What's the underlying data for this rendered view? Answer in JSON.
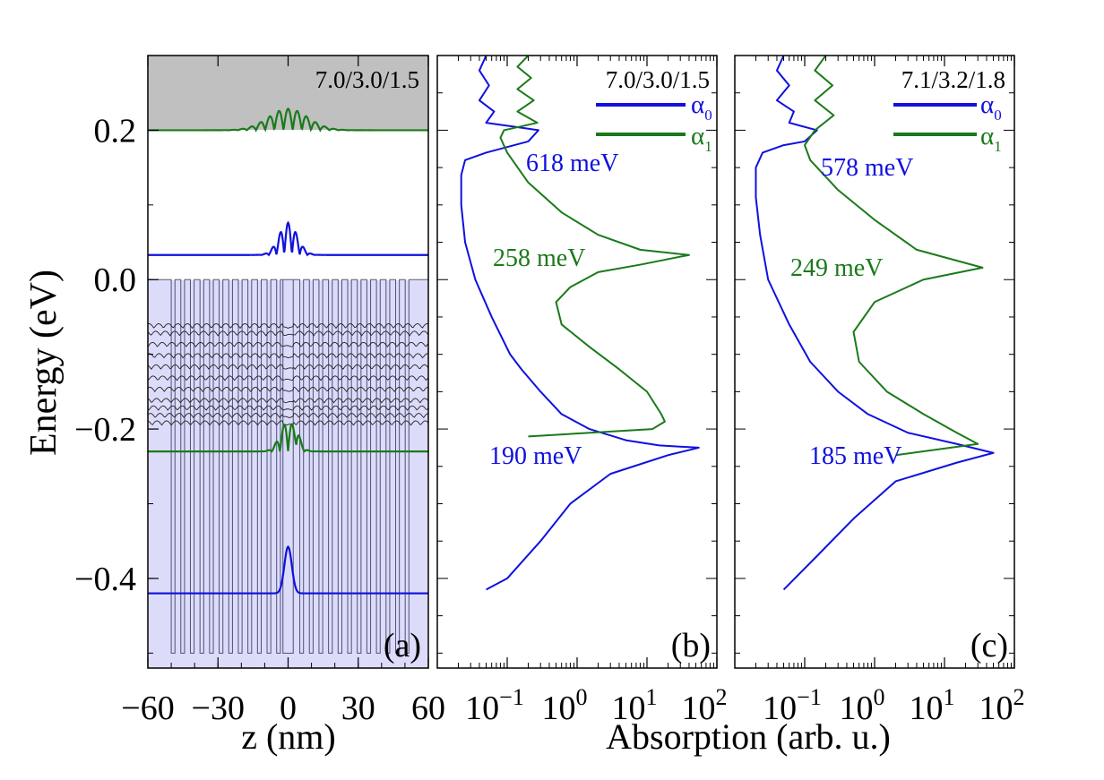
{
  "colors": {
    "blue": "#1010e0",
    "green": "#1a7a1a",
    "black": "#000000",
    "grey_region": "#c0c0c0",
    "barrier_region": "#dcdcfa"
  },
  "labels": {
    "y_axis": "Energy (eV)",
    "x_axis_a": "z (nm)",
    "x_axis_bc": "Absorption (arb. u.)",
    "panel_a": "(a)",
    "panel_b": "(b)",
    "panel_c": "(c)",
    "title_a": "7.0/3.0/1.5",
    "title_b": "7.0/3.0/1.5",
    "title_c": "7.1/3.2/1.8",
    "legend_a0_b": "α",
    "legend_a0_sub_b": "0",
    "legend_a1_b": "α",
    "legend_a1_sub_b": "1",
    "legend_a0_c": "α",
    "legend_a0_sub_c": "0",
    "legend_a1_c": "α",
    "legend_a1_sub_c": "1",
    "ann_b1": "618 meV",
    "ann_b2": "258 meV",
    "ann_b3": "190 meV",
    "ann_c1": "578 meV",
    "ann_c2": "249 meV",
    "ann_c3": "185 meV"
  },
  "chart_data": [
    {
      "panel": "a",
      "type": "line",
      "xlabel": "z (nm)",
      "ylabel": "Energy (eV)",
      "xlim": [
        -60,
        60
      ],
      "ylim": [
        -0.52,
        0.3
      ],
      "xticks": [
        -60,
        -30,
        0,
        30,
        60
      ],
      "xtick_labels": [
        "−60",
        "−30",
        "0",
        "30",
        "60"
      ],
      "yticks": [
        -0.4,
        -0.2,
        0.0,
        0.2
      ],
      "ytick_labels": [
        "−0.4",
        "−0.2",
        "0.0",
        "0.2"
      ],
      "title": "7.0/3.0/1.5",
      "regions": [
        {
          "name": "continuum",
          "y_from": 0.2,
          "y_to": 0.3
        },
        {
          "name": "barrier",
          "y_from": -0.52,
          "y_to": 0.0
        }
      ],
      "states": [
        {
          "name": "ground",
          "energy": -0.42,
          "color": "blue"
        },
        {
          "name": "level-2",
          "energy": -0.23,
          "color": "green"
        },
        {
          "name": "level-3",
          "energy": 0.033,
          "color": "blue"
        },
        {
          "name": "continuum-state",
          "energy": 0.2,
          "color": "green"
        }
      ],
      "minibands": [
        -0.065,
        -0.075,
        -0.09,
        -0.105,
        -0.12,
        -0.135,
        -0.15,
        -0.165,
        -0.175,
        -0.185,
        -0.195
      ]
    },
    {
      "panel": "b",
      "type": "line",
      "xscale": "log",
      "xlim": [
        0.01,
        100
      ],
      "ylim": [
        -0.52,
        0.3
      ],
      "xticks": [
        0.1,
        1,
        10,
        100
      ],
      "title": "7.0/3.0/1.5",
      "series": [
        {
          "name": "α0",
          "color": "blue",
          "points": [
            [
              0.05,
              0.3
            ],
            [
              0.04,
              0.28
            ],
            [
              0.055,
              0.26
            ],
            [
              0.04,
              0.24
            ],
            [
              0.065,
              0.225
            ],
            [
              0.05,
              0.21
            ],
            [
              0.12,
              0.205
            ],
            [
              0.28,
              0.2
            ],
            [
              0.2,
              0.185
            ],
            [
              0.05,
              0.17
            ],
            [
              0.025,
              0.16
            ],
            [
              0.022,
              0.14
            ],
            [
              0.022,
              0.1
            ],
            [
              0.025,
              0.05
            ],
            [
              0.035,
              0.0
            ],
            [
              0.06,
              -0.05
            ],
            [
              0.11,
              -0.1
            ],
            [
              0.16,
              -0.12
            ],
            [
              0.3,
              -0.15
            ],
            [
              0.6,
              -0.18
            ],
            [
              1.5,
              -0.2
            ],
            [
              5,
              -0.215
            ],
            [
              15,
              -0.222
            ],
            [
              55,
              -0.225
            ],
            [
              20,
              -0.235
            ],
            [
              3,
              -0.26
            ],
            [
              0.8,
              -0.3
            ],
            [
              0.3,
              -0.35
            ],
            [
              0.1,
              -0.4
            ],
            [
              0.05,
              -0.415
            ]
          ]
        },
        {
          "name": "α1",
          "color": "green",
          "points": [
            [
              0.2,
              0.3
            ],
            [
              0.14,
              0.285
            ],
            [
              0.22,
              0.27
            ],
            [
              0.14,
              0.255
            ],
            [
              0.24,
              0.24
            ],
            [
              0.14,
              0.225
            ],
            [
              0.27,
              0.21
            ],
            [
              0.09,
              0.2
            ],
            [
              0.08,
              0.19
            ],
            [
              0.1,
              0.17
            ],
            [
              0.2,
              0.13
            ],
            [
              0.6,
              0.09
            ],
            [
              2,
              0.06
            ],
            [
              8,
              0.04
            ],
            [
              40,
              0.033
            ],
            [
              8,
              0.02
            ],
            [
              2,
              0.01
            ],
            [
              0.8,
              -0.01
            ],
            [
              0.5,
              -0.03
            ],
            [
              0.6,
              -0.06
            ],
            [
              1.5,
              -0.09
            ],
            [
              4,
              -0.12
            ],
            [
              10,
              -0.15
            ],
            [
              16,
              -0.18
            ],
            [
              18,
              -0.19
            ],
            [
              12,
              -0.2
            ],
            [
              0.2,
              -0.21
            ]
          ]
        }
      ],
      "annotations": [
        "618 meV",
        "258 meV",
        "190 meV"
      ]
    },
    {
      "panel": "c",
      "type": "line",
      "xscale": "log",
      "xlim": [
        0.01,
        100
      ],
      "ylim": [
        -0.52,
        0.3
      ],
      "xticks": [
        0.1,
        1,
        10,
        100
      ],
      "title": "7.1/3.2/1.8",
      "series": [
        {
          "name": "α0",
          "color": "blue",
          "points": [
            [
              0.05,
              0.3
            ],
            [
              0.04,
              0.28
            ],
            [
              0.06,
              0.26
            ],
            [
              0.04,
              0.24
            ],
            [
              0.07,
              0.225
            ],
            [
              0.06,
              0.21
            ],
            [
              0.15,
              0.2
            ],
            [
              0.1,
              0.185
            ],
            [
              0.05,
              0.18
            ],
            [
              0.025,
              0.17
            ],
            [
              0.02,
              0.15
            ],
            [
              0.02,
              0.11
            ],
            [
              0.023,
              0.06
            ],
            [
              0.03,
              0.0
            ],
            [
              0.06,
              -0.06
            ],
            [
              0.12,
              -0.11
            ],
            [
              0.3,
              -0.15
            ],
            [
              0.8,
              -0.18
            ],
            [
              3,
              -0.205
            ],
            [
              15,
              -0.22
            ],
            [
              50,
              -0.232
            ],
            [
              15,
              -0.245
            ],
            [
              2,
              -0.27
            ],
            [
              0.5,
              -0.32
            ],
            [
              0.15,
              -0.37
            ],
            [
              0.05,
              -0.415
            ]
          ]
        },
        {
          "name": "α1",
          "color": "green",
          "points": [
            [
              0.2,
              0.3
            ],
            [
              0.14,
              0.28
            ],
            [
              0.25,
              0.26
            ],
            [
              0.14,
              0.24
            ],
            [
              0.26,
              0.22
            ],
            [
              0.14,
              0.2
            ],
            [
              0.1,
              0.18
            ],
            [
              0.12,
              0.16
            ],
            [
              0.3,
              0.12
            ],
            [
              1,
              0.08
            ],
            [
              4,
              0.04
            ],
            [
              35,
              0.016
            ],
            [
              5,
              0.0
            ],
            [
              1,
              -0.03
            ],
            [
              0.5,
              -0.07
            ],
            [
              0.6,
              -0.11
            ],
            [
              1.5,
              -0.15
            ],
            [
              5,
              -0.18
            ],
            [
              15,
              -0.205
            ],
            [
              30,
              -0.22
            ],
            [
              2,
              -0.235
            ]
          ]
        }
      ],
      "annotations": [
        "578 meV",
        "249 meV",
        "185 meV"
      ]
    }
  ]
}
